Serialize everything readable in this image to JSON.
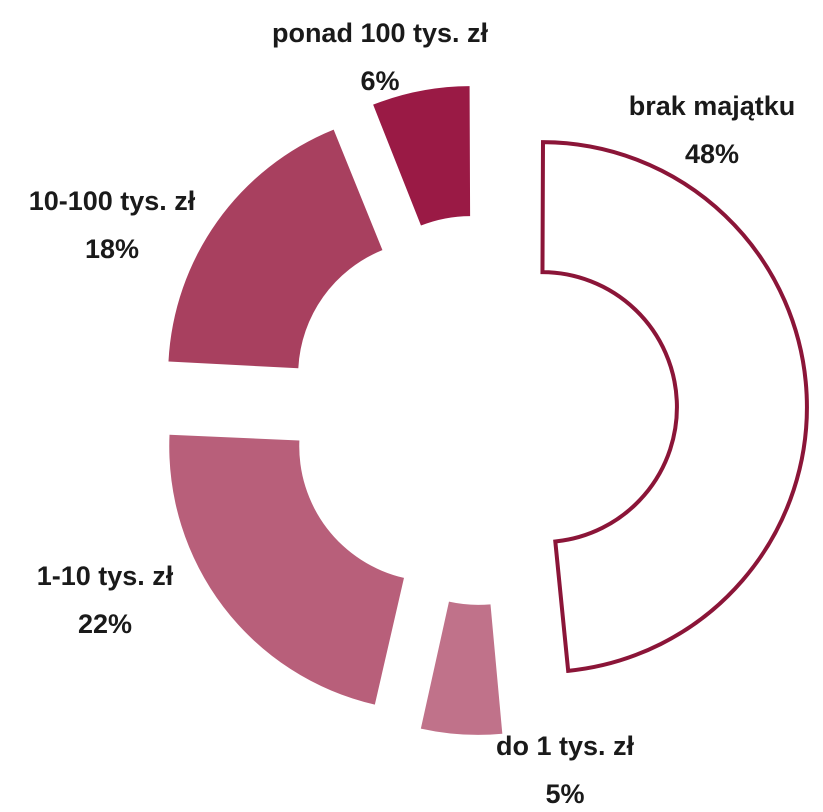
{
  "chart_data": {
    "type": "donut",
    "categories": [
      "brak majątku",
      "do 1 tys. zł",
      "1-10 tys. zł",
      "10-100 tys. zł",
      "ponad 100 tys. zł"
    ],
    "values": [
      48,
      5,
      22,
      18,
      6
    ],
    "value_labels": [
      "48%",
      "5%",
      "22%",
      "18%",
      "6%"
    ],
    "colors": [
      "#ffffff",
      "#c0728a",
      "#b85f7a",
      "#a8405f",
      "#9a1a45"
    ],
    "outline_color": "#8b1538"
  }
}
